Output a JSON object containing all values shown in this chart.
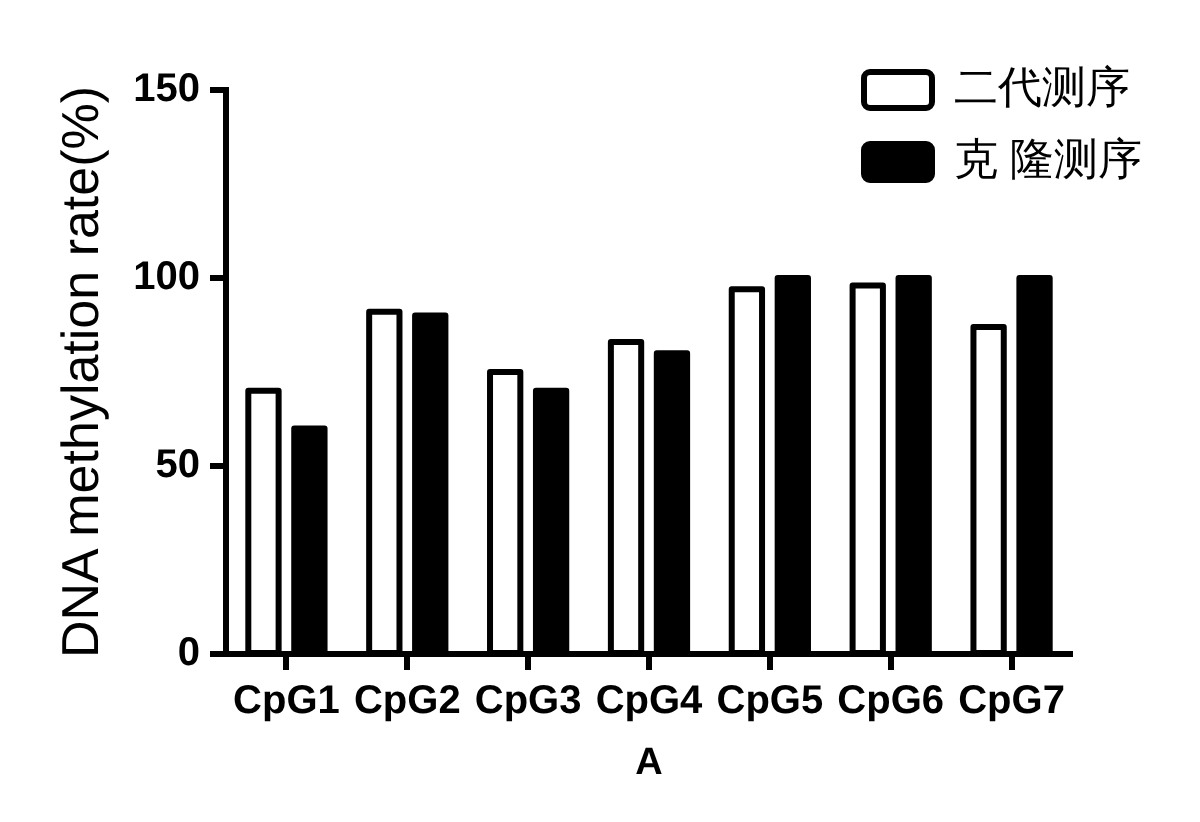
{
  "chart_data": {
    "type": "bar",
    "xlabel": "A",
    "ylabel": "DNA methylation rate(%)",
    "categories": [
      "CpG1",
      "CpG2",
      "CpG3",
      "CpG4",
      "CpG5",
      "CpG6",
      "CpG7"
    ],
    "series": [
      {
        "name": "二代测序",
        "color": "#ffffff",
        "values": [
          70,
          91,
          75,
          83,
          97,
          98,
          87
        ]
      },
      {
        "name": "克 隆测序",
        "color": "#000000",
        "values": [
          60,
          90,
          70,
          80,
          100,
          100,
          100
        ]
      }
    ],
    "ylim": [
      0,
      150
    ],
    "yticks": [
      0,
      50,
      100,
      150
    ],
    "grid": false,
    "legend": "top right"
  }
}
